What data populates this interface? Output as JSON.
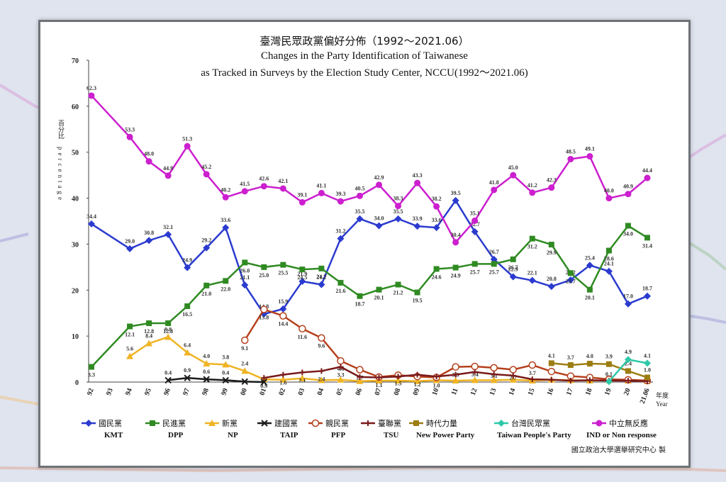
{
  "chart_data": {
    "type": "line",
    "title": "臺灣民眾政黨偏好分佈（1992～2021.06）",
    "subtitle_line1": "Changes in the Party Identification of Taiwanese",
    "subtitle_line2": "as Tracked in Surveys by the Election Study Center, NCCU(1992～2021.06)",
    "ylabel_cn": "百分比",
    "ylabel_en": "percentage",
    "xlabel_cn": "年度",
    "xlabel_en": "Year",
    "ylim": [
      0,
      70
    ],
    "yticks": [
      0,
      10,
      20,
      30,
      40,
      50,
      60,
      70
    ],
    "x_labels": [
      "92",
      "93",
      "94",
      "95",
      "96",
      "97",
      "98",
      "99",
      "00",
      "01",
      "02",
      "03",
      "04",
      "05",
      "06",
      "07",
      "08",
      "09",
      "10",
      "11",
      "12",
      "13",
      "14",
      "15",
      "16",
      "17",
      "18",
      "19",
      "20",
      "21.06"
    ],
    "series": [
      {
        "name": "國民黨",
        "name_en": "KMT",
        "color": "#2b3bcf",
        "marker": "diamond",
        "points": [
          [
            0,
            34.4
          ],
          [
            2,
            29.0
          ],
          [
            3,
            30.8
          ],
          [
            4,
            32.1
          ],
          [
            5,
            24.9
          ],
          [
            6,
            29.2
          ],
          [
            7,
            33.6
          ],
          [
            8,
            21.1
          ],
          [
            9,
            14.8
          ],
          [
            10,
            15.9
          ],
          [
            11,
            21.9
          ],
          [
            12,
            21.2
          ],
          [
            13,
            31.2
          ],
          [
            14,
            35.5
          ],
          [
            15,
            34.0
          ],
          [
            16,
            35.5
          ],
          [
            17,
            33.9
          ],
          [
            18,
            33.6
          ],
          [
            19,
            39.5
          ],
          [
            20,
            32.7
          ],
          [
            21,
            26.7
          ],
          [
            22,
            22.9
          ],
          [
            23,
            22.1
          ],
          [
            24,
            20.8
          ],
          [
            25,
            22.2
          ],
          [
            26,
            25.4
          ],
          [
            27,
            24.1
          ],
          [
            28,
            17.0
          ],
          [
            29,
            18.7
          ]
        ],
        "labels": [
          "34.4",
          "29.0",
          "30.8",
          "32.1",
          "24.9",
          "29.2",
          "33.6",
          "21.1",
          "14.8",
          "15.9",
          "21.9",
          "21.2",
          "31.2",
          "35.5",
          "34.0",
          "35.5",
          "33.9",
          "33.6",
          "39.5",
          "32.7",
          "26.7",
          "22.9",
          "22.1",
          "20.8",
          "22.2",
          "25.4",
          "24.1",
          "17.0",
          "18.7"
        ]
      },
      {
        "name": "民進黨",
        "name_en": "DPP",
        "color": "#2f8a22",
        "marker": "square",
        "points": [
          [
            0,
            3.3
          ],
          [
            2,
            12.1
          ],
          [
            3,
            12.8
          ],
          [
            4,
            12.8
          ],
          [
            5,
            16.5
          ],
          [
            6,
            21.0
          ],
          [
            7,
            22.0
          ],
          [
            8,
            26.0
          ],
          [
            9,
            25.0
          ],
          [
            10,
            25.5
          ],
          [
            11,
            24.5
          ],
          [
            12,
            24.7
          ],
          [
            13,
            21.6
          ],
          [
            14,
            18.7
          ],
          [
            15,
            20.1
          ],
          [
            16,
            21.2
          ],
          [
            17,
            19.5
          ],
          [
            18,
            24.6
          ],
          [
            19,
            24.9
          ],
          [
            20,
            25.7
          ],
          [
            21,
            25.7
          ],
          [
            22,
            26.7
          ],
          [
            23,
            31.2
          ],
          [
            24,
            29.9
          ],
          [
            25,
            23.7
          ],
          [
            26,
            20.1
          ],
          [
            27,
            28.6
          ],
          [
            28,
            34.0
          ],
          [
            29,
            31.4
          ]
        ],
        "labels": [
          "3.3",
          "12.1",
          "12.8",
          "12.8",
          "16.5",
          "21.0",
          "22.0",
          "26.0",
          "25.0",
          "25.5",
          "24.5",
          "24.7",
          "21.6",
          "18.7",
          "20.1",
          "21.2",
          "19.5",
          "24.6",
          "24.9",
          "25.7",
          "25.7",
          "26.7",
          "31.2",
          "29.9",
          "23.7",
          "20.1",
          "28.6",
          "34.0",
          "31.4"
        ]
      },
      {
        "name": "新黨",
        "name_en": "NP",
        "color": "#f0b323",
        "marker": "triangle",
        "points": [
          [
            2,
            5.6
          ],
          [
            3,
            8.4
          ],
          [
            4,
            9.8
          ],
          [
            5,
            6.4
          ],
          [
            6,
            4.0
          ],
          [
            7,
            3.8
          ],
          [
            8,
            2.4
          ],
          [
            9,
            0.6
          ],
          [
            10,
            0.5
          ],
          [
            11,
            0.8
          ],
          [
            12,
            0.4
          ],
          [
            13,
            0.5
          ],
          [
            14,
            0.2
          ],
          [
            15,
            0.3
          ],
          [
            16,
            0.3
          ],
          [
            17,
            0.2
          ],
          [
            18,
            0.4
          ],
          [
            19,
            0.3
          ],
          [
            20,
            0.4
          ],
          [
            21,
            0.4
          ],
          [
            22,
            0.5
          ],
          [
            23,
            0.3
          ],
          [
            24,
            0.5
          ],
          [
            25,
            0.4
          ],
          [
            26,
            0.3
          ],
          [
            27,
            0.4
          ],
          [
            28,
            0.3
          ],
          [
            29,
            0.2
          ]
        ],
        "labels": [
          "5.6",
          "8.4",
          "9.8",
          "6.4",
          "4.0",
          "3.8",
          "2.4",
          "",
          "",
          "",
          "",
          "",
          "",
          "",
          "",
          "",
          "",
          "",
          "",
          "",
          "",
          "",
          "",
          "",
          "",
          "",
          "",
          ""
        ]
      },
      {
        "name": "建國黨",
        "name_en": "TAIP",
        "color": "#1a1a1a",
        "marker": "x",
        "points": [
          [
            4,
            0.4
          ],
          [
            5,
            0.9
          ],
          [
            6,
            0.6
          ],
          [
            7,
            0.4
          ],
          [
            8,
            0.1
          ],
          [
            9,
            0.0
          ]
        ],
        "labels": [
          "0.4",
          "0.9",
          "0.6",
          "0.4",
          "",
          ""
        ]
      },
      {
        "name": "親民黨",
        "name_en": "PFP",
        "color": "#b5401c",
        "marker": "circle",
        "points": [
          [
            8,
            9.1
          ],
          [
            9,
            15.8
          ],
          [
            10,
            14.4
          ],
          [
            11,
            11.6
          ],
          [
            12,
            9.6
          ],
          [
            13,
            4.6
          ],
          [
            14,
            2.7
          ],
          [
            15,
            1.1
          ],
          [
            16,
            1.5
          ],
          [
            17,
            1.2
          ],
          [
            18,
            1.0
          ],
          [
            19,
            3.3
          ],
          [
            20,
            3.4
          ],
          [
            21,
            3.1
          ],
          [
            22,
            2.7
          ],
          [
            23,
            3.7
          ],
          [
            24,
            2.3
          ],
          [
            25,
            1.3
          ],
          [
            26,
            1.0
          ],
          [
            27,
            0.6
          ],
          [
            28,
            0.5
          ],
          [
            29,
            0.3
          ]
        ],
        "labels": [
          "9.1",
          "15.8",
          "14.4",
          "11.6",
          "9.6",
          "4.6",
          "2.7",
          "1.1",
          "1.5",
          "1.2",
          "1.0",
          "3.3",
          "3.4",
          "3.1",
          "2.7",
          "3.7",
          "",
          "",
          "",
          "",
          "",
          ""
        ]
      },
      {
        "name": "臺聯黨",
        "name_en": "TSU",
        "color": "#7a1a1a",
        "marker": "plus",
        "points": [
          [
            9,
            0.9
          ],
          [
            10,
            1.6
          ],
          [
            11,
            2.1
          ],
          [
            12,
            2.4
          ],
          [
            13,
            3.3
          ],
          [
            14,
            1.1
          ],
          [
            15,
            1.0
          ],
          [
            16,
            1.2
          ],
          [
            17,
            1.6
          ],
          [
            18,
            1.2
          ],
          [
            19,
            1.6
          ],
          [
            20,
            2.2
          ],
          [
            21,
            1.7
          ],
          [
            22,
            1.4
          ],
          [
            23,
            0.6
          ],
          [
            24,
            0.5
          ],
          [
            25,
            0.3
          ],
          [
            26,
            0.4
          ],
          [
            27,
            0.3
          ],
          [
            28,
            0.3
          ],
          [
            29,
            0.2
          ]
        ],
        "labels": [
          "0.9",
          "1.6",
          "2.1",
          "2.4",
          "3.3",
          "",
          "",
          "",
          "",
          "",
          "",
          "",
          "",
          "",
          "",
          "",
          "",
          "",
          "",
          "",
          ""
        ]
      },
      {
        "name": "時代力量",
        "name_en": "New Power Party",
        "color": "#9c7d12",
        "marker": "square",
        "points": [
          [
            24,
            4.1
          ],
          [
            25,
            3.7
          ],
          [
            26,
            4.0
          ],
          [
            27,
            3.9
          ],
          [
            28,
            2.4
          ],
          [
            29,
            1.0
          ]
        ],
        "labels": [
          "4.1",
          "3.7",
          "4.0",
          "3.9",
          "2.4",
          "1.0"
        ]
      },
      {
        "name": "台灣民眾黨",
        "name_en": "Taiwan People's Party",
        "color": "#2ec9a8",
        "marker": "diamond",
        "points": [
          [
            27,
            0.1
          ],
          [
            28,
            4.9
          ],
          [
            29,
            4.1
          ]
        ],
        "labels": [
          "0.1",
          "4.9",
          "4.1"
        ]
      },
      {
        "name": "中立無反應",
        "name_en": "IND or Non response",
        "color": "#cc1fcf",
        "marker": "circle",
        "points": [
          [
            0,
            62.3
          ],
          [
            2,
            53.3
          ],
          [
            3,
            48.0
          ],
          [
            4,
            44.9
          ],
          [
            5,
            51.3
          ],
          [
            6,
            45.2
          ],
          [
            7,
            40.2
          ],
          [
            8,
            41.5
          ],
          [
            9,
            42.6
          ],
          [
            10,
            42.1
          ],
          [
            11,
            39.1
          ],
          [
            12,
            41.1
          ],
          [
            13,
            39.3
          ],
          [
            14,
            40.5
          ],
          [
            15,
            42.9
          ],
          [
            16,
            38.3
          ],
          [
            17,
            43.3
          ],
          [
            18,
            38.2
          ],
          [
            19,
            30.4
          ],
          [
            20,
            35.1
          ],
          [
            21,
            41.8
          ],
          [
            22,
            45.0
          ],
          [
            23,
            41.2
          ],
          [
            24,
            42.3
          ],
          [
            25,
            48.5
          ],
          [
            26,
            49.1
          ],
          [
            27,
            40.0
          ],
          [
            28,
            40.9
          ],
          [
            29,
            44.4
          ]
        ],
        "labels": [
          "62.3",
          "53.3",
          "48.0",
          "44.9",
          "51.3",
          "45.2",
          "40.2",
          "41.5",
          "42.6",
          "42.1",
          "39.1",
          "41.1",
          "39.3",
          "40.5",
          "42.9",
          "38.3",
          "43.3",
          "38.2",
          "30.4",
          "35.1",
          "41.8",
          "45.0",
          "41.2",
          "42.3",
          "48.5",
          "49.1",
          "40.0",
          "40.9",
          "44.4"
        ]
      }
    ]
  },
  "credit": "國立政治大學選舉研究中心 製"
}
